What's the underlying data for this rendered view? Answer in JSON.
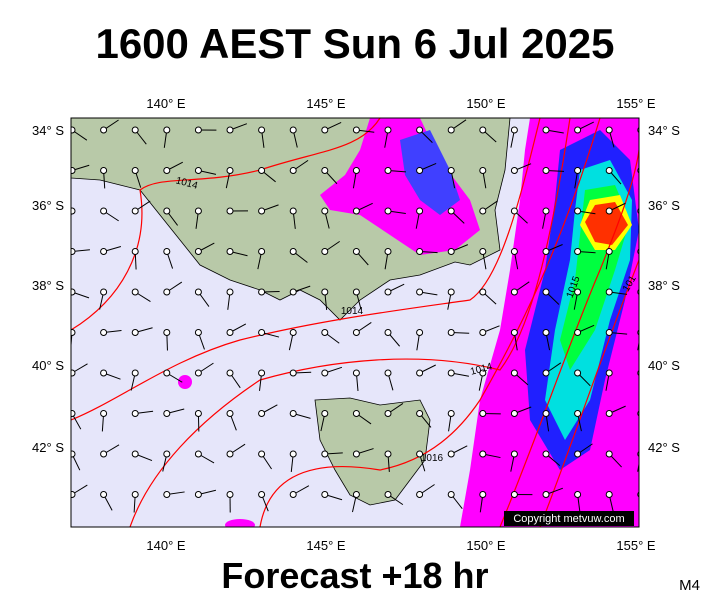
{
  "header": {
    "title": "1600 AEST Sun 6 Jul 2025"
  },
  "map": {
    "lon_labels": [
      "140° E",
      "145° E",
      "150° E",
      "155° E"
    ],
    "lat_labels": [
      "34° S",
      "36° S",
      "38° S",
      "40° S",
      "42° S"
    ],
    "isobar_labels": [
      "1014",
      "1014",
      "1014",
      "1016",
      "1015",
      "101"
    ],
    "copyright": "Copyright metvuw.com"
  },
  "footer": {
    "forecast": "Forecast +18 hr",
    "code": "M4"
  }
}
